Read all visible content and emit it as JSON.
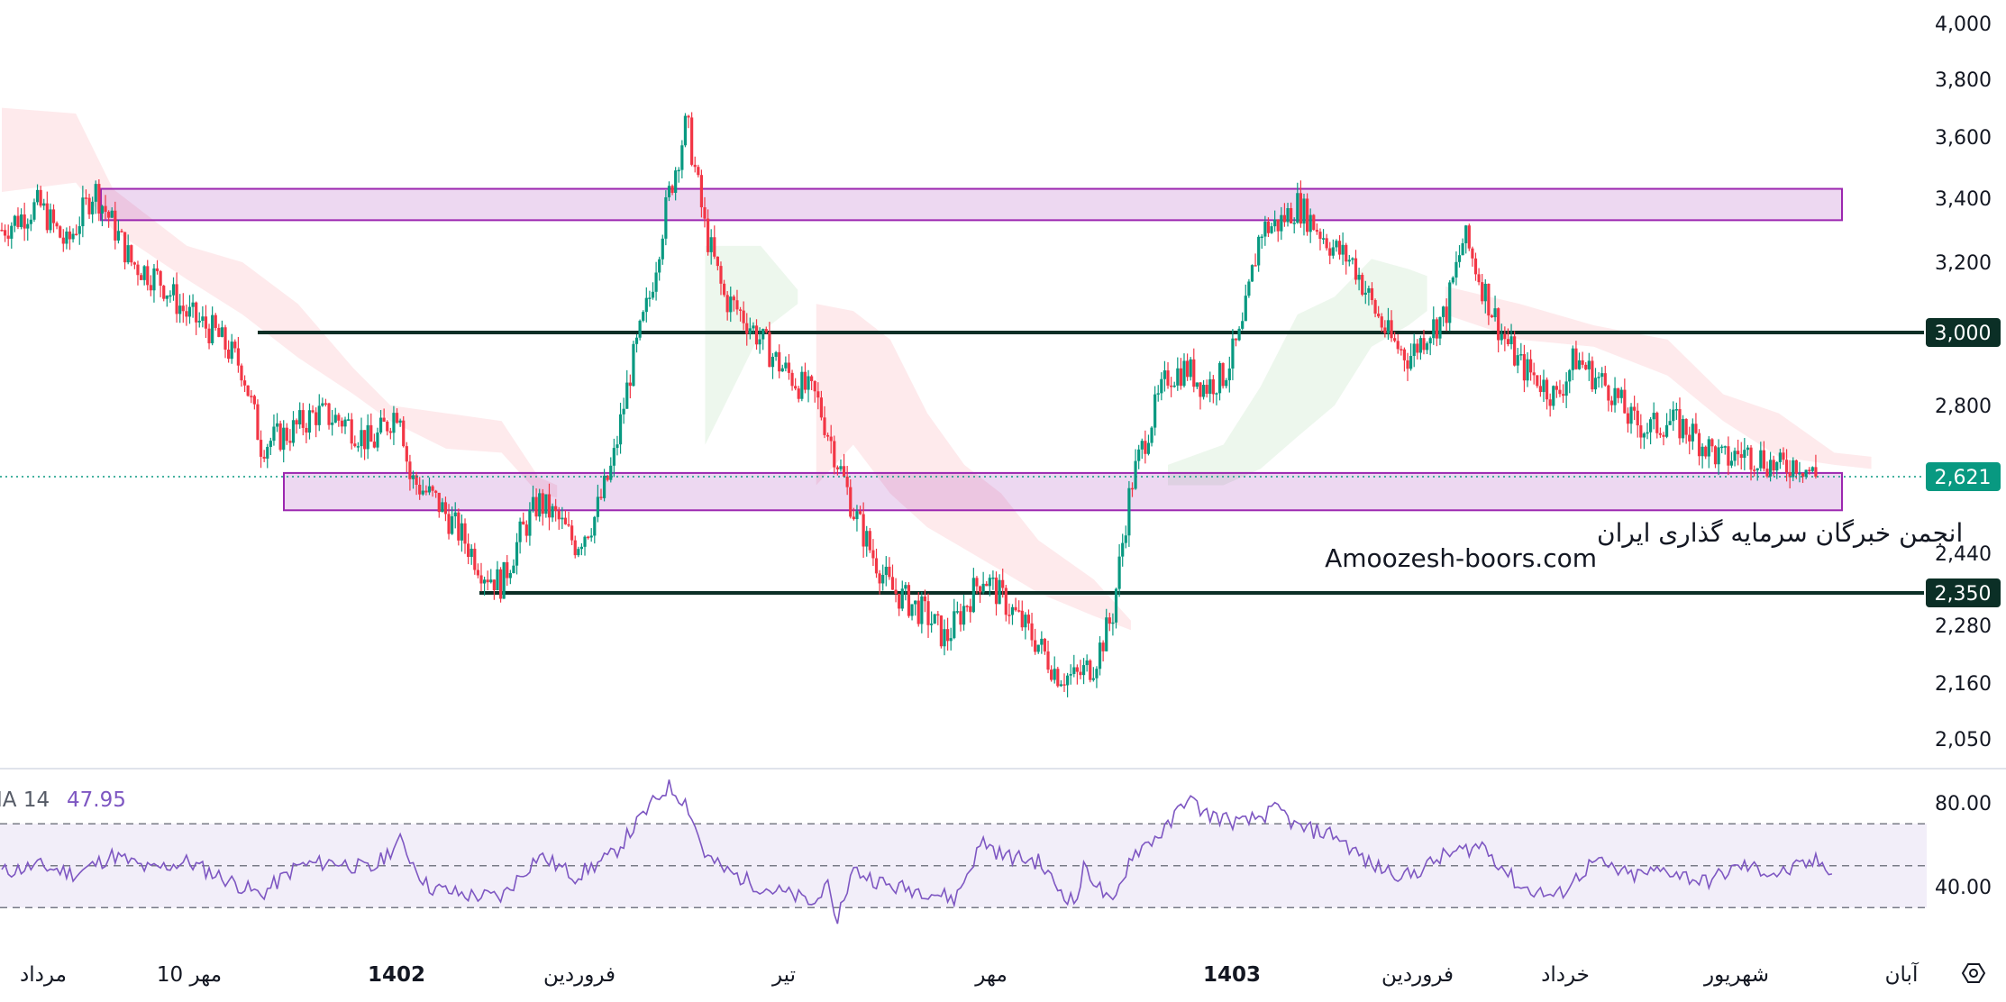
{
  "chart_data": {
    "type": "candlestick",
    "price_axis": {
      "ticks": [
        4000,
        3800,
        3600,
        3400,
        3200,
        3000,
        2800,
        2620,
        2440,
        2280,
        2160,
        2050
      ],
      "tick_labels": [
        "4,000",
        "3,800",
        "3,600",
        "3,400",
        "3,200",
        "",
        "2,800",
        "",
        "2,440",
        "2,280",
        "2,160",
        "2,050"
      ],
      "scale": "log"
    },
    "time_axis": {
      "labels": [
        "مرداد",
        "10 مهر",
        "1402",
        "فروردین",
        "تیر",
        "مهر",
        "1403",
        "فروردین",
        "خرداد",
        "شهریور",
        "آبان"
      ],
      "bold": [
        false,
        false,
        true,
        false,
        false,
        false,
        true,
        false,
        false,
        false,
        false
      ]
    },
    "last_price": {
      "value": 2621,
      "label": "2,621",
      "color": "#089981"
    },
    "support_resistance_lines": [
      {
        "value": 3000,
        "label": "3,000"
      },
      {
        "value": 2350,
        "label": "2,350"
      }
    ],
    "zones": [
      {
        "from": 3330,
        "to": 3430,
        "color": "#9c27b0"
      },
      {
        "from": 2540,
        "to": 2630,
        "color": "#9c27b0"
      }
    ],
    "price_path": [
      [
        0,
        3300
      ],
      [
        4,
        3380
      ],
      [
        7,
        3250
      ],
      [
        10,
        3430
      ],
      [
        14,
        3200
      ],
      [
        17,
        3150
      ],
      [
        20,
        3050
      ],
      [
        23,
        3000
      ],
      [
        26,
        2900
      ],
      [
        28,
        2700
      ],
      [
        31,
        2730
      ],
      [
        34,
        2780
      ],
      [
        37,
        2760
      ],
      [
        40,
        2700
      ],
      [
        43,
        2800
      ],
      [
        44,
        2620
      ],
      [
        47,
        2560
      ],
      [
        50,
        2470
      ],
      [
        52,
        2400
      ],
      [
        54,
        2370
      ],
      [
        56,
        2480
      ],
      [
        58,
        2560
      ],
      [
        60,
        2520
      ],
      [
        62,
        2460
      ],
      [
        64,
        2520
      ],
      [
        66,
        2650
      ],
      [
        68,
        2900
      ],
      [
        70,
        3100
      ],
      [
        72,
        3400
      ],
      [
        74,
        3650
      ],
      [
        76,
        3300
      ],
      [
        78,
        3100
      ],
      [
        80,
        3050
      ],
      [
        82,
        2980
      ],
      [
        84,
        2910
      ],
      [
        86,
        2860
      ],
      [
        88,
        2820
      ],
      [
        90,
        2680
      ],
      [
        92,
        2540
      ],
      [
        94,
        2440
      ],
      [
        96,
        2360
      ],
      [
        98,
        2330
      ],
      [
        100,
        2300
      ],
      [
        102,
        2250
      ],
      [
        104,
        2320
      ],
      [
        106,
        2390
      ],
      [
        108,
        2340
      ],
      [
        110,
        2290
      ],
      [
        112,
        2240
      ],
      [
        114,
        2180
      ],
      [
        116,
        2170
      ],
      [
        118,
        2200
      ],
      [
        120,
        2300
      ],
      [
        122,
        2600
      ],
      [
        124,
        2750
      ],
      [
        126,
        2880
      ],
      [
        128,
        2900
      ],
      [
        130,
        2850
      ],
      [
        132,
        2880
      ],
      [
        134,
        3000
      ],
      [
        136,
        3300
      ],
      [
        138,
        3320
      ],
      [
        140,
        3380
      ],
      [
        142,
        3310
      ],
      [
        144,
        3240
      ],
      [
        146,
        3200
      ],
      [
        148,
        3080
      ],
      [
        150,
        2980
      ],
      [
        152,
        2930
      ],
      [
        154,
        3000
      ],
      [
        156,
        3050
      ],
      [
        158,
        3280
      ],
      [
        160,
        3130
      ],
      [
        162,
        3000
      ],
      [
        164,
        2910
      ],
      [
        166,
        2870
      ],
      [
        168,
        2820
      ],
      [
        170,
        2930
      ],
      [
        172,
        2880
      ],
      [
        174,
        2840
      ],
      [
        176,
        2760
      ],
      [
        178,
        2740
      ],
      [
        180,
        2760
      ],
      [
        182,
        2740
      ],
      [
        184,
        2700
      ],
      [
        186,
        2660
      ],
      [
        188,
        2680
      ],
      [
        190,
        2670
      ],
      [
        192,
        2640
      ],
      [
        194,
        2660
      ],
      [
        196,
        2621
      ]
    ],
    "ichimoku_cloud": {
      "bearish_color": "#f7525f",
      "bullish_color": "#4caf50",
      "segments": [
        {
          "type": "bearish",
          "points": [
            [
              0,
              3700,
              3420
            ],
            [
              8,
              3680,
              3450
            ],
            [
              12,
              3430,
              3300
            ],
            [
              20,
              3250,
              3150
            ],
            [
              26,
              3200,
              3050
            ],
            [
              32,
              3080,
              2930
            ],
            [
              38,
              2900,
              2830
            ],
            [
              42,
              2800,
              2760
            ],
            [
              48,
              2780,
              2690
            ],
            [
              54,
              2760,
              2680
            ],
            [
              58,
              2620,
              2580
            ],
            [
              60,
              2600,
              2570
            ]
          ]
        },
        {
          "type": "bullish",
          "points": [
            [
              76,
              3250,
              2700
            ],
            [
              82,
              3250,
              3000
            ],
            [
              86,
              3120,
              3080
            ]
          ]
        },
        {
          "type": "bearish",
          "points": [
            [
              88,
              3080,
              2600
            ],
            [
              92,
              3060,
              2700
            ],
            [
              96,
              2980,
              2580
            ],
            [
              100,
              2780,
              2500
            ],
            [
              104,
              2650,
              2450
            ],
            [
              108,
              2580,
              2400
            ],
            [
              112,
              2470,
              2350
            ],
            [
              118,
              2380,
              2300
            ],
            [
              122,
              2290,
              2270
            ]
          ]
        },
        {
          "type": "bullish",
          "points": [
            [
              126,
              2650,
              2600
            ],
            [
              132,
              2700,
              2600
            ],
            [
              136,
              2850,
              2640
            ],
            [
              140,
              3050,
              2720
            ],
            [
              144,
              3100,
              2800
            ],
            [
              148,
              3210,
              2960
            ],
            [
              152,
              3180,
              3020
            ],
            [
              154,
              3160,
              3060
            ]
          ]
        },
        {
          "type": "bearish",
          "points": [
            [
              156,
              3130,
              3050
            ],
            [
              164,
              3080,
              2980
            ],
            [
              172,
              3020,
              2960
            ],
            [
              180,
              2980,
              2880
            ],
            [
              186,
              2830,
              2760
            ],
            [
              192,
              2780,
              2670
            ],
            [
              198,
              2680,
              2650
            ],
            [
              202,
              2670,
              2640
            ]
          ]
        }
      ]
    },
    "indicator": {
      "name": "RSI",
      "label": "IA 14",
      "value": 47.95,
      "value_label": "47.95",
      "color": "#7e57c2",
      "axis_ticks": [
        "80.00",
        "40.00"
      ],
      "band": [
        30,
        70
      ],
      "middle": 50,
      "series": [
        [
          0,
          47
        ],
        [
          4,
          50
        ],
        [
          8,
          46
        ],
        [
          12,
          55
        ],
        [
          16,
          48
        ],
        [
          20,
          52
        ],
        [
          24,
          44
        ],
        [
          28,
          36
        ],
        [
          32,
          50
        ],
        [
          36,
          52
        ],
        [
          40,
          48
        ],
        [
          43,
          62
        ],
        [
          46,
          40
        ],
        [
          50,
          36
        ],
        [
          54,
          35
        ],
        [
          58,
          55
        ],
        [
          62,
          45
        ],
        [
          66,
          55
        ],
        [
          70,
          78
        ],
        [
          72,
          88
        ],
        [
          74,
          80
        ],
        [
          76,
          55
        ],
        [
          78,
          48
        ],
        [
          82,
          40
        ],
        [
          86,
          35
        ],
        [
          88,
          31
        ],
        [
          89,
          45
        ],
        [
          90,
          22
        ],
        [
          92,
          48
        ],
        [
          96,
          40
        ],
        [
          100,
          38
        ],
        [
          103,
          34
        ],
        [
          106,
          62
        ],
        [
          108,
          55
        ],
        [
          112,
          52
        ],
        [
          114,
          40
        ],
        [
          116,
          32
        ],
        [
          117,
          50
        ],
        [
          120,
          30
        ],
        [
          122,
          55
        ],
        [
          126,
          68
        ],
        [
          128,
          83
        ],
        [
          130,
          75
        ],
        [
          134,
          70
        ],
        [
          138,
          77
        ],
        [
          140,
          68
        ],
        [
          144,
          65
        ],
        [
          148,
          50
        ],
        [
          152,
          45
        ],
        [
          156,
          55
        ],
        [
          160,
          60
        ],
        [
          164,
          40
        ],
        [
          168,
          35
        ],
        [
          172,
          52
        ],
        [
          176,
          45
        ],
        [
          180,
          48
        ],
        [
          184,
          42
        ],
        [
          188,
          50
        ],
        [
          192,
          46
        ],
        [
          196,
          52
        ],
        [
          198,
          48
        ]
      ]
    },
    "watermark": [
      "انجمن خبرگان سرمایه گذاری ایران",
      "Amoozesh-boors.com"
    ]
  }
}
